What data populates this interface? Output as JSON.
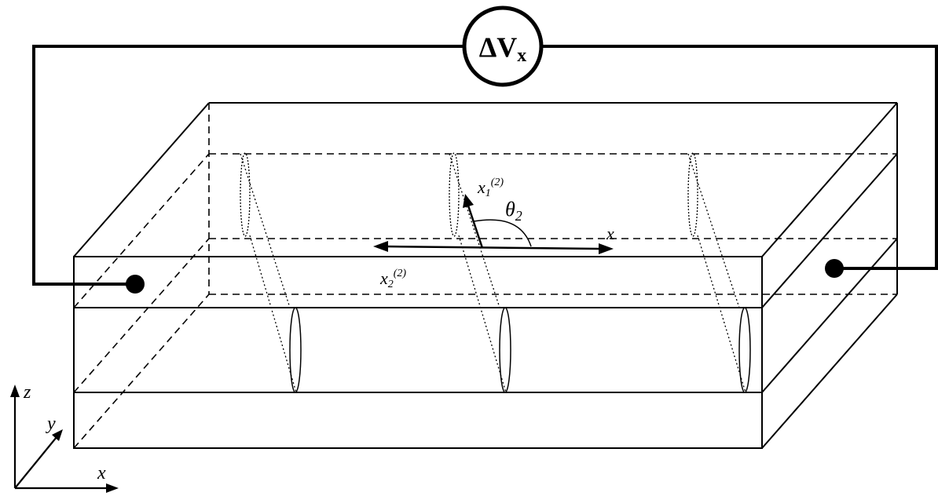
{
  "voltmeter": {
    "symbol": "ΔV",
    "subscript": "x"
  },
  "labels": {
    "x1_base": "x",
    "x1_sub": "1",
    "x1_sup": "(2)",
    "x2_base": "x",
    "x2_sub": "2",
    "x2_sup": "(2)",
    "theta_base": "θ",
    "theta_sub": "2",
    "x_arrow": "x"
  },
  "axes": {
    "z": "z",
    "y": "y",
    "x": "x"
  },
  "colors": {
    "stroke": "#000000",
    "background": "#ffffff"
  }
}
